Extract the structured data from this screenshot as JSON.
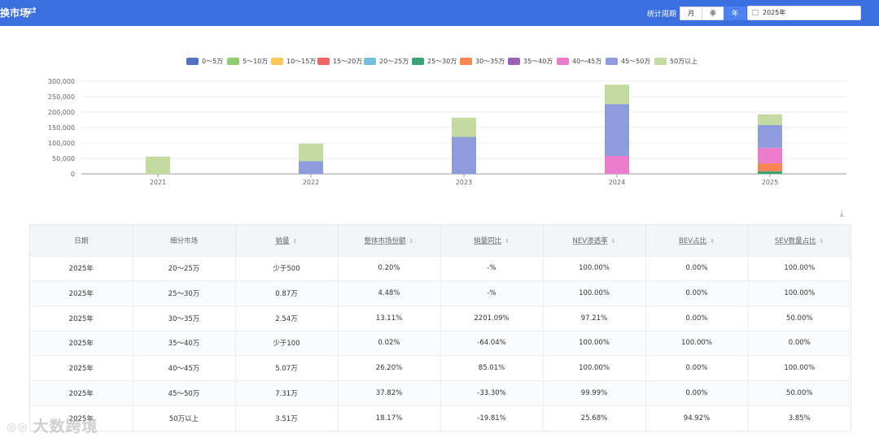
{
  "header": {
    "title": "换市场",
    "swap_icon": "⇄",
    "period_label": "统计周期",
    "period_options": [
      "月",
      "季",
      "年"
    ],
    "active_period": "年",
    "date_value": "2025年"
  },
  "colors": {
    "header_bg": "#3b6fe0",
    "active_seg": "#4d82f0",
    "series": [
      "#5470c6",
      "#91cc75",
      "#fac858",
      "#ee6666",
      "#73c0de",
      "#3ba272",
      "#fc8452",
      "#9a60b4",
      "#ea7ccc",
      "#8e9bdc",
      "#c3dba0"
    ]
  },
  "chart_data": {
    "type": "bar",
    "stacked": true,
    "categories": [
      "2021",
      "2022",
      "2023",
      "2024",
      "2025"
    ],
    "ylim": [
      0,
      300000
    ],
    "yticks": [
      "0",
      "50,000",
      "100,000",
      "150,000",
      "200,000",
      "250,000",
      "300,000"
    ],
    "legend_position": "top-center",
    "grid": "horizontal",
    "series": [
      {
        "name": "0～5万",
        "values": [
          0,
          0,
          0,
          0,
          0
        ]
      },
      {
        "name": "5～10万",
        "values": [
          0,
          0,
          0,
          0,
          0
        ]
      },
      {
        "name": "10～15万",
        "values": [
          0,
          0,
          0,
          0,
          0
        ]
      },
      {
        "name": "15～20万",
        "values": [
          0,
          0,
          0,
          0,
          0
        ]
      },
      {
        "name": "20～25万",
        "values": [
          0,
          0,
          0,
          0,
          0
        ]
      },
      {
        "name": "25～30万",
        "values": [
          0,
          0,
          0,
          0,
          8700
        ]
      },
      {
        "name": "30～35万",
        "values": [
          0,
          0,
          0,
          0,
          25400
        ]
      },
      {
        "name": "35～40万",
        "values": [
          0,
          0,
          0,
          0,
          0
        ]
      },
      {
        "name": "40～45万",
        "values": [
          0,
          0,
          0,
          58000,
          50700
        ]
      },
      {
        "name": "45～50万",
        "values": [
          0,
          41000,
          120000,
          168000,
          73100
        ]
      },
      {
        "name": "50万以上",
        "values": [
          56000,
          57000,
          62000,
          63000,
          35100
        ]
      }
    ]
  },
  "table": {
    "columns": [
      {
        "label": "日期",
        "sortable": false,
        "underline": false
      },
      {
        "label": "细分市场",
        "sortable": false,
        "underline": false
      },
      {
        "label": "销量",
        "sortable": true,
        "underline": true
      },
      {
        "label": "整体市场份额",
        "sortable": true,
        "underline": true
      },
      {
        "label": "销量同比",
        "sortable": true,
        "underline": true
      },
      {
        "label": "NEV渗透率",
        "sortable": true,
        "underline": true
      },
      {
        "label": "BEV占比",
        "sortable": true,
        "underline": true
      },
      {
        "label": "SEV数量占比",
        "sortable": true,
        "underline": true
      }
    ],
    "rows": [
      [
        "2025年",
        "20～25万",
        "少于500",
        "0.20%",
        "-%",
        "100.00%",
        "0.00%",
        "100.00%"
      ],
      [
        "2025年",
        "25～30万",
        "0.87万",
        "4.48%",
        "-%",
        "100.00%",
        "0.00%",
        "100.00%"
      ],
      [
        "2025年",
        "30～35万",
        "2.54万",
        "13.11%",
        "2201.09%",
        "97.21%",
        "0.00%",
        "50.00%"
      ],
      [
        "2025年",
        "35～40万",
        "少于100",
        "0.02%",
        "-64.04%",
        "100.00%",
        "100.00%",
        "0.00%"
      ],
      [
        "2025年",
        "40～45万",
        "5.07万",
        "26.20%",
        "85.01%",
        "100.00%",
        "0.00%",
        "100.00%"
      ],
      [
        "2025年",
        "45～50万",
        "7.31万",
        "37.82%",
        "-33.30%",
        "99.99%",
        "0.00%",
        "50.00%"
      ],
      [
        "2025年",
        "50万以上",
        "3.51万",
        "18.17%",
        "-19.81%",
        "25.68%",
        "94.92%",
        "3.85%"
      ]
    ]
  },
  "watermark": {
    "text": "大数跨境"
  }
}
